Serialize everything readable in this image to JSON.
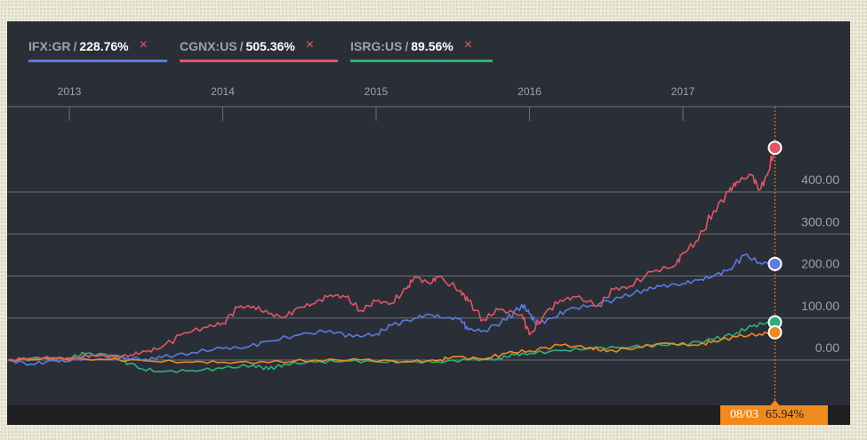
{
  "chart_data": {
    "type": "line",
    "x_axis": {
      "tick_labels": [
        "2013",
        "2014",
        "2015",
        "2016",
        "2017"
      ],
      "range": [
        2012.6,
        2017.6
      ]
    },
    "y_axis": {
      "tick_labels": [
        "400.00",
        "300.00",
        "200.00",
        "100.00",
        "0.00"
      ],
      "ticks": [
        400,
        300,
        200,
        100,
        0
      ],
      "range": [
        -100,
        500
      ],
      "position": "right"
    },
    "grid": true,
    "legend_position": "top-left",
    "series": [
      {
        "name": "IFX:GR",
        "last_value_label": "228.76%",
        "color": "#5b7be0",
        "last": 228.76,
        "points": [
          [
            2012.6,
            0
          ],
          [
            2012.75,
            -10
          ],
          [
            2012.9,
            -2
          ],
          [
            2013.0,
            -3
          ],
          [
            2013.15,
            12
          ],
          [
            2013.3,
            6
          ],
          [
            2013.5,
            2
          ],
          [
            2013.6,
            6
          ],
          [
            2013.8,
            18
          ],
          [
            2014.0,
            28
          ],
          [
            2014.15,
            30
          ],
          [
            2014.3,
            45
          ],
          [
            2014.5,
            60
          ],
          [
            2014.7,
            70
          ],
          [
            2014.85,
            55
          ],
          [
            2015.0,
            62
          ],
          [
            2015.1,
            82
          ],
          [
            2015.25,
            100
          ],
          [
            2015.35,
            108
          ],
          [
            2015.45,
            100
          ],
          [
            2015.55,
            98
          ],
          [
            2015.6,
            72
          ],
          [
            2015.7,
            70
          ],
          [
            2015.85,
            95
          ],
          [
            2015.95,
            132
          ],
          [
            2016.0,
            110
          ],
          [
            2016.05,
            85
          ],
          [
            2016.15,
            100
          ],
          [
            2016.25,
            120
          ],
          [
            2016.4,
            130
          ],
          [
            2016.6,
            148
          ],
          [
            2016.75,
            168
          ],
          [
            2016.85,
            175
          ],
          [
            2017.0,
            182
          ],
          [
            2017.1,
            190
          ],
          [
            2017.2,
            200
          ],
          [
            2017.3,
            215
          ],
          [
            2017.4,
            250
          ],
          [
            2017.5,
            232
          ],
          [
            2017.6,
            228.76
          ]
        ]
      },
      {
        "name": "CGNX:US",
        "last_value_label": "505.36%",
        "color": "#e05566",
        "last": 505.36,
        "points": [
          [
            2012.6,
            0
          ],
          [
            2012.75,
            4
          ],
          [
            2012.9,
            6
          ],
          [
            2013.0,
            2
          ],
          [
            2013.15,
            12
          ],
          [
            2013.3,
            8
          ],
          [
            2013.4,
            12
          ],
          [
            2013.5,
            20
          ],
          [
            2013.6,
            30
          ],
          [
            2013.75,
            65
          ],
          [
            2013.9,
            78
          ],
          [
            2014.0,
            88
          ],
          [
            2014.1,
            125
          ],
          [
            2014.2,
            128
          ],
          [
            2014.3,
            110
          ],
          [
            2014.4,
            102
          ],
          [
            2014.5,
            125
          ],
          [
            2014.6,
            135
          ],
          [
            2014.7,
            155
          ],
          [
            2014.8,
            150
          ],
          [
            2014.9,
            118
          ],
          [
            2015.0,
            140
          ],
          [
            2015.1,
            135
          ],
          [
            2015.2,
            170
          ],
          [
            2015.25,
            198
          ],
          [
            2015.35,
            182
          ],
          [
            2015.4,
            198
          ],
          [
            2015.55,
            165
          ],
          [
            2015.6,
            140
          ],
          [
            2015.7,
            96
          ],
          [
            2015.8,
            120
          ],
          [
            2015.95,
            108
          ],
          [
            2016.0,
            60
          ],
          [
            2016.1,
            110
          ],
          [
            2016.2,
            142
          ],
          [
            2016.3,
            150
          ],
          [
            2016.45,
            130
          ],
          [
            2016.55,
            168
          ],
          [
            2016.65,
            175
          ],
          [
            2016.8,
            210
          ],
          [
            2016.95,
            225
          ],
          [
            2017.0,
            255
          ],
          [
            2017.1,
            285
          ],
          [
            2017.2,
            355
          ],
          [
            2017.3,
            400
          ],
          [
            2017.35,
            425
          ],
          [
            2017.45,
            440
          ],
          [
            2017.5,
            405
          ],
          [
            2017.55,
            440
          ],
          [
            2017.6,
            505.36
          ]
        ]
      },
      {
        "name": "ISRG:US",
        "last_value_label": "89.56%",
        "color": "#2fb07a",
        "last": 89.56,
        "points": [
          [
            2012.6,
            0
          ],
          [
            2012.8,
            2
          ],
          [
            2013.0,
            5
          ],
          [
            2013.1,
            15
          ],
          [
            2013.3,
            12
          ],
          [
            2013.45,
            -20
          ],
          [
            2013.6,
            -28
          ],
          [
            2013.8,
            -25
          ],
          [
            2014.0,
            -20
          ],
          [
            2014.2,
            -12
          ],
          [
            2014.3,
            -22
          ],
          [
            2014.4,
            -10
          ],
          [
            2014.6,
            -5
          ],
          [
            2014.8,
            -2
          ],
          [
            2015.0,
            -4
          ],
          [
            2015.2,
            -5
          ],
          [
            2015.4,
            -4
          ],
          [
            2015.6,
            0
          ],
          [
            2015.8,
            4
          ],
          [
            2015.9,
            12
          ],
          [
            2016.0,
            16
          ],
          [
            2016.2,
            22
          ],
          [
            2016.4,
            28
          ],
          [
            2016.6,
            30
          ],
          [
            2016.8,
            35
          ],
          [
            2017.0,
            38
          ],
          [
            2017.2,
            48
          ],
          [
            2017.35,
            65
          ],
          [
            2017.45,
            80
          ],
          [
            2017.55,
            90
          ],
          [
            2017.6,
            89.56
          ]
        ]
      },
      {
        "name": "",
        "color": "#f08a1e",
        "last": 65.94,
        "points": [
          [
            2012.6,
            0
          ],
          [
            2012.9,
            3
          ],
          [
            2013.2,
            2
          ],
          [
            2013.5,
            -2
          ],
          [
            2013.8,
            -5
          ],
          [
            2014.0,
            -5
          ],
          [
            2014.3,
            -6
          ],
          [
            2014.6,
            0
          ],
          [
            2014.9,
            0
          ],
          [
            2015.2,
            -3
          ],
          [
            2015.4,
            -2
          ],
          [
            2015.5,
            8
          ],
          [
            2015.7,
            2
          ],
          [
            2015.85,
            16
          ],
          [
            2016.0,
            22
          ],
          [
            2016.2,
            35
          ],
          [
            2016.4,
            30
          ],
          [
            2016.5,
            20
          ],
          [
            2016.7,
            30
          ],
          [
            2016.9,
            40
          ],
          [
            2017.1,
            35
          ],
          [
            2017.2,
            45
          ],
          [
            2017.35,
            55
          ],
          [
            2017.5,
            62
          ],
          [
            2017.6,
            65.94
          ]
        ]
      }
    ],
    "tooltip": {
      "date": "08/03",
      "value": "65.94%"
    }
  },
  "ui": {
    "legend_separator": "/",
    "remove_icon": "×",
    "remove_icon_name": "close-icon"
  }
}
